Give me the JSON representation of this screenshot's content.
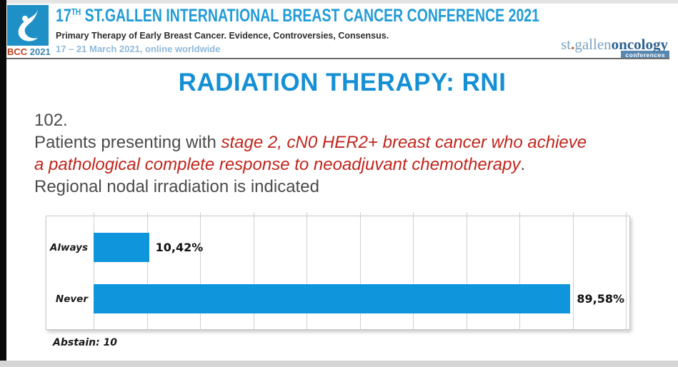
{
  "header": {
    "logo_bcc": "BCC",
    "logo_year": "2021",
    "title_num": "17",
    "title_sup": "TH",
    "title_rest": " ST.GALLEN INTERNATIONAL BREAST CANCER CONFERENCE 2021",
    "subtitle": "Primary Therapy of Early Breast Cancer. Evidence, Controversies, Consensus.",
    "dates": "17 – 21 March 2021, online worldwide",
    "sgo_part1": "st",
    "sgo_dot": ".",
    "sgo_part2": "gallen",
    "sgo_part3": "oncology",
    "sgo_badge": "conferences"
  },
  "slide": {
    "title": "RADIATION THERAPY: RNI",
    "question_number": "102.",
    "q_intro": "Patients presenting with ",
    "q_red1": "stage 2, cN0 HER2+ breast cancer who achieve",
    "q_red2": "a pathological complete response to neoadjuvant chemotherapy",
    "q_period": ".",
    "q_statement": "Regional nodal irradiation is indicated",
    "abstain": "Abstain: 10"
  },
  "chart_data": {
    "type": "bar",
    "orientation": "horizontal",
    "title": "",
    "categories": [
      "Always",
      "Never"
    ],
    "values": [
      10.42,
      89.58
    ],
    "value_labels": [
      "10,42%",
      "89,58%"
    ],
    "xlim": [
      0,
      100
    ],
    "gridline_interval": 10,
    "grid": true,
    "legend": false,
    "bar_color": "#0f95dc",
    "annotation": "Abstain: 10"
  },
  "colors": {
    "header_blue": "#219bd7",
    "slide_title_blue": "#1590d4",
    "question_red": "#c0251c",
    "bar_blue": "#0f95dc",
    "dates_blue": "#8fb9db",
    "bcc_red": "#c03e1c",
    "sgo_light_blue": "#7ba3c2",
    "sgo_dark_blue": "#2e6391"
  }
}
